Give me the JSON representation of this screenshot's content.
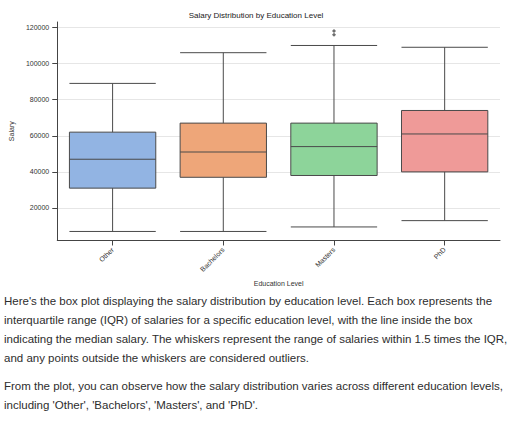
{
  "chart_data": {
    "type": "box",
    "title": "Salary Distribution by Education Level",
    "x_label": "Education Level",
    "y_label": "Salary",
    "categories": [
      "Other",
      "Bachelors",
      "Masters",
      "PhD"
    ],
    "values": [
      [
        7000,
        31000,
        47000,
        62000,
        89000
      ],
      [
        7000,
        37000,
        51000,
        67000,
        106000
      ],
      [
        9500,
        38000,
        54000,
        67000,
        110000
      ],
      [
        13000,
        40000,
        61000,
        74000,
        109000
      ]
    ],
    "outliers": [
      [],
      [],
      [
        116000,
        118000
      ],
      []
    ],
    "colors": [
      "#92b4e3",
      "#eea679",
      "#8dd49a",
      "#ef9a98"
    ],
    "marker": "diamond",
    "ylim": [
      2000,
      123000
    ],
    "yticks": [
      20000,
      40000,
      60000,
      80000,
      100000,
      120000
    ],
    "grid": true
  },
  "paragraphs": [
    "Here's the box plot displaying the salary distribution by education level. Each box represents the interquartile range (IQR) of salaries for a specific education level, with the line inside the box indicating the median salary. The whiskers represent the range of salaries within 1.5 times the IQR, and any points outside the whiskers are considered outliers.",
    "From the plot, you can observe how the salary distribution varies across different education levels, including 'Other', 'Bachelors', 'Masters', and 'PhD'."
  ]
}
